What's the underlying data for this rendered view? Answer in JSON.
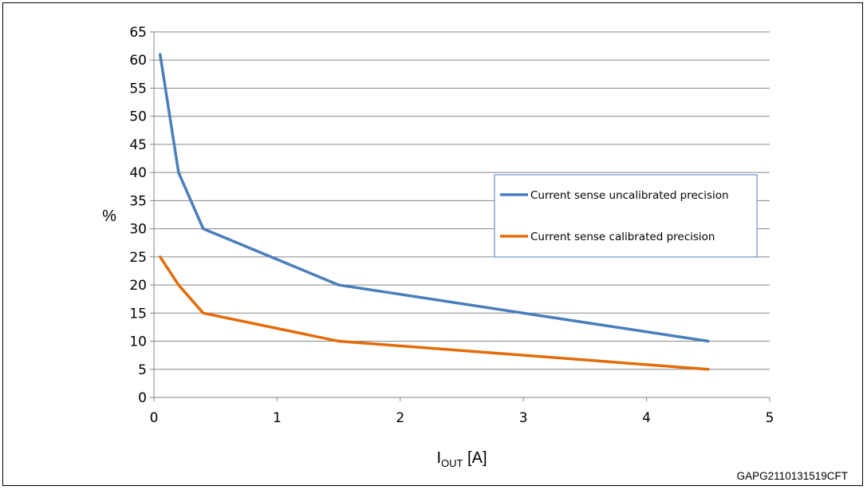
{
  "figure_code": "GAPG2110131519CFT",
  "colors": {
    "uncalibrated": "#4a7ebb",
    "calibrated": "#e36c0a",
    "grid": "#868686",
    "axis": "#868686",
    "legend_border": "#4f81bd"
  },
  "chart_data": {
    "type": "line",
    "title": "",
    "xlabel": {
      "main": "I",
      "sub": "OUT",
      "unit": " [A]"
    },
    "ylabel": "%",
    "xlim": [
      0,
      5
    ],
    "ylim": [
      0,
      65
    ],
    "xticks": [
      0,
      1,
      2,
      3,
      4,
      5
    ],
    "yticks": [
      0,
      5,
      10,
      15,
      20,
      25,
      30,
      35,
      40,
      45,
      50,
      55,
      60,
      65
    ],
    "grid": "horizontal",
    "legend_position": "right",
    "series": [
      {
        "name": "Current sense uncalibrated precision",
        "color_key": "uncalibrated",
        "x": [
          0.05,
          0.2,
          0.4,
          1.5,
          4.5
        ],
        "y": [
          61,
          40,
          30,
          20,
          10
        ]
      },
      {
        "name": "Current sense calibrated precision",
        "color_key": "calibrated",
        "x": [
          0.05,
          0.2,
          0.4,
          1.5,
          4.5
        ],
        "y": [
          25,
          20,
          15,
          10,
          5
        ]
      }
    ]
  }
}
